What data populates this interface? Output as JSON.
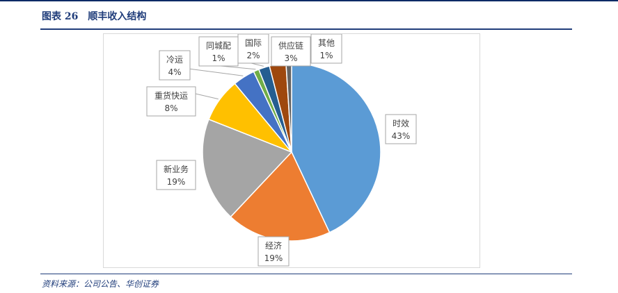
{
  "figure": {
    "title": "图表 26　顺丰收入结构",
    "source": "资料来源：公司公告、华创证券"
  },
  "chart_data": {
    "type": "pie",
    "title": "",
    "start_angle_deg": 0,
    "direction": "clockwise",
    "legend": "none",
    "slices": [
      {
        "name": "时效",
        "value": 43,
        "label": "43%",
        "color": "#5b9bd5"
      },
      {
        "name": "经济",
        "value": 19,
        "label": "19%",
        "color": "#ed7d31"
      },
      {
        "name": "新业务",
        "value": 19,
        "label": "19%",
        "color": "#a5a5a5"
      },
      {
        "name": "重货快运",
        "value": 8,
        "label": "8%",
        "color": "#ffc000"
      },
      {
        "name": "冷运",
        "value": 4,
        "label": "4%",
        "color": "#4472c4"
      },
      {
        "name": "同城配",
        "value": 1,
        "label": "1%",
        "color": "#70ad47"
      },
      {
        "name": "国际",
        "value": 2,
        "label": "2%",
        "color": "#255e91"
      },
      {
        "name": "供应链",
        "value": 3,
        "label": "3%",
        "color": "#9e480e"
      },
      {
        "name": "其他",
        "value": 1,
        "label": "1%",
        "color": "#636363"
      }
    ]
  }
}
